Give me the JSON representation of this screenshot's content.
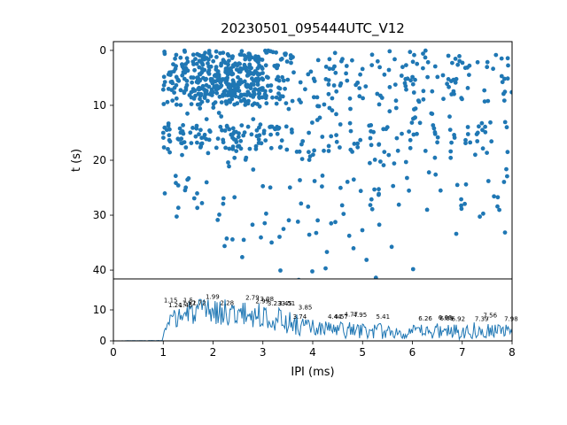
{
  "chart_data": [
    {
      "type": "scatter",
      "title": "20230501_095444UTC_V12",
      "ylabel": "t (s)",
      "xlim": [
        0,
        8
      ],
      "ylim": [
        -1.6,
        41.6
      ],
      "yticks": [
        0,
        10,
        20,
        30,
        40
      ],
      "color": "#1f77b4",
      "marker_radius": 2.4,
      "seed": 7,
      "note": "dense IPI scatter: clusters describe uniform point clouds (count, x-range ms, t-range s)",
      "clusters": [
        {
          "count": 260,
          "x": [
            1.0,
            3.5
          ],
          "t": [
            0,
            10
          ]
        },
        {
          "count": 180,
          "x": [
            1.6,
            3.0
          ],
          "t": [
            0.5,
            8.5
          ]
        },
        {
          "count": 140,
          "x": [
            3.5,
            8.0
          ],
          "t": [
            0,
            10
          ]
        },
        {
          "count": 30,
          "x": [
            1.0,
            8.0
          ],
          "t": [
            10,
            13.5
          ]
        },
        {
          "count": 110,
          "x": [
            1.0,
            3.6
          ],
          "t": [
            13.5,
            18
          ]
        },
        {
          "count": 70,
          "x": [
            3.6,
            8.0
          ],
          "t": [
            13,
            18.5
          ]
        },
        {
          "count": 80,
          "x": [
            1.0,
            8.0
          ],
          "t": [
            18,
            28
          ]
        },
        {
          "count": 40,
          "x": [
            1.2,
            8.0
          ],
          "t": [
            28,
            35
          ]
        },
        {
          "count": 14,
          "x": [
            1.5,
            8.0
          ],
          "t": [
            35,
            42
          ]
        }
      ]
    },
    {
      "type": "line",
      "xlabel": "IPI (ms)",
      "xlim": [
        0,
        8
      ],
      "ylim": [
        0,
        20
      ],
      "xticks": [
        0,
        1,
        2,
        3,
        4,
        5,
        6,
        7,
        8
      ],
      "yticks": [
        0,
        10
      ],
      "color": "#1f77b4",
      "seed": 3,
      "step": 0.02,
      "note": "noisy count-vs-IPI trace: envelope rows are [x, lo, hi]; y drawn uniformly between lo and hi",
      "envelope": [
        [
          0,
          0,
          0
        ],
        [
          0.98,
          0,
          0.2
        ],
        [
          1.05,
          2,
          6
        ],
        [
          1.2,
          4,
          10
        ],
        [
          1.5,
          5,
          13
        ],
        [
          2.0,
          5,
          14
        ],
        [
          2.4,
          5,
          13
        ],
        [
          3.0,
          4,
          12
        ],
        [
          3.3,
          3,
          11
        ],
        [
          3.6,
          2,
          9
        ],
        [
          4.0,
          1,
          7
        ],
        [
          4.5,
          0.5,
          6.5
        ],
        [
          5.0,
          0.5,
          6
        ],
        [
          5.5,
          0.5,
          5.5
        ],
        [
          6.0,
          0.5,
          5
        ],
        [
          6.5,
          0.5,
          6
        ],
        [
          7.0,
          0.5,
          6
        ],
        [
          7.5,
          1,
          6.5
        ],
        [
          8.0,
          0.5,
          5
        ]
      ],
      "annotations": [
        {
          "x": 1.15,
          "y": 12.4,
          "label": "1.15"
        },
        {
          "x": 1.24,
          "y": 10.9,
          "label": "1.24"
        },
        {
          "x": 1.45,
          "y": 10.9,
          "label": "1.45"
        },
        {
          "x": 1.5,
          "y": 12.4,
          "label": "1.5"
        },
        {
          "x": 1.52,
          "y": 11.6,
          "label": "1.52"
        },
        {
          "x": 1.72,
          "y": 11.6,
          "label": "1.72"
        },
        {
          "x": 1.99,
          "y": 13.6,
          "label": "1.99"
        },
        {
          "x": 2.28,
          "y": 11.6,
          "label": "2.28"
        },
        {
          "x": 2.79,
          "y": 13.3,
          "label": "2.79"
        },
        {
          "x": 2.99,
          "y": 12.1,
          "label": "2.99"
        },
        {
          "x": 3.08,
          "y": 12.9,
          "label": "3.08"
        },
        {
          "x": 3.23,
          "y": 11.5,
          "label": "3.23"
        },
        {
          "x": 3.45,
          "y": 11.4,
          "label": "3.45"
        },
        {
          "x": 3.51,
          "y": 11.4,
          "label": "3.51"
        },
        {
          "x": 3.85,
          "y": 10.2,
          "label": "3.85"
        },
        {
          "x": 3.74,
          "y": 7.2,
          "label": "3.74"
        },
        {
          "x": 4.44,
          "y": 7.2,
          "label": "4.44"
        },
        {
          "x": 4.57,
          "y": 7.2,
          "label": "4.57"
        },
        {
          "x": 4.77,
          "y": 7.9,
          "label": "4.77"
        },
        {
          "x": 4.95,
          "y": 7.7,
          "label": "4.95"
        },
        {
          "x": 5.41,
          "y": 7.2,
          "label": "5.41"
        },
        {
          "x": 6.26,
          "y": 6.6,
          "label": "6.26"
        },
        {
          "x": 6.66,
          "y": 6.9,
          "label": "6.66"
        },
        {
          "x": 6.69,
          "y": 6.6,
          "label": "6.69"
        },
        {
          "x": 6.92,
          "y": 6.5,
          "label": "6.92"
        },
        {
          "x": 7.39,
          "y": 6.4,
          "label": "7.39"
        },
        {
          "x": 7.56,
          "y": 7.6,
          "label": "7.56"
        },
        {
          "x": 7.98,
          "y": 6.4,
          "label": "7.98"
        }
      ]
    }
  ]
}
